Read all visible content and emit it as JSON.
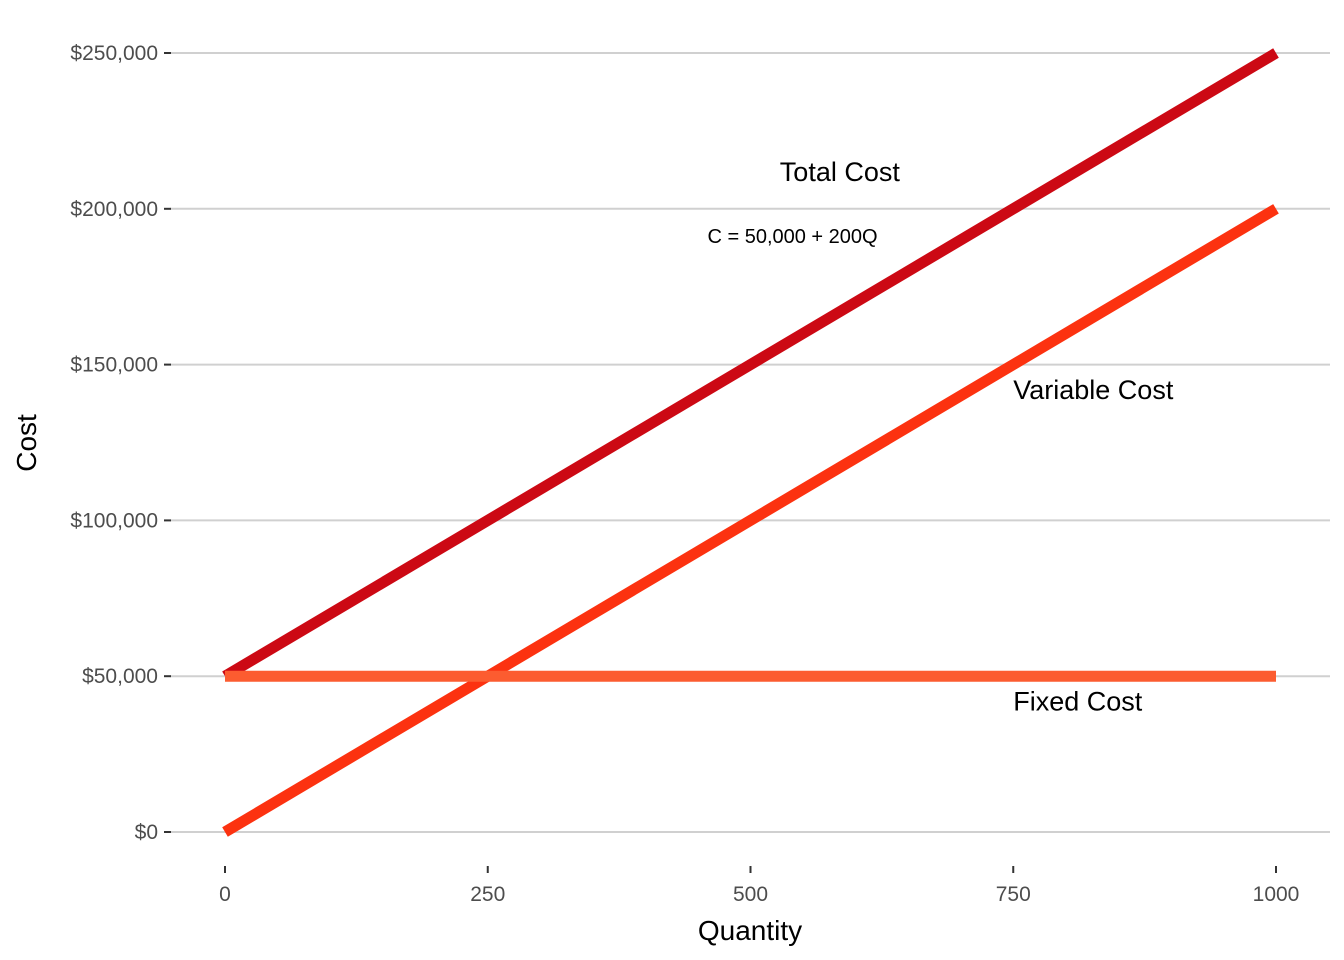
{
  "chart_data": {
    "type": "line",
    "xlabel": "Quantity",
    "ylabel": "Cost",
    "xlim": [
      0,
      1000
    ],
    "ylim": [
      0,
      250000
    ],
    "x_ticks": [
      0,
      250,
      500,
      750,
      1000
    ],
    "x_tick_labels": [
      "0",
      "250",
      "500",
      "750",
      "1000"
    ],
    "y_ticks": [
      0,
      50000,
      100000,
      150000,
      200000,
      250000
    ],
    "y_tick_labels": [
      "$0",
      "$50,000",
      "$100,000",
      "$150,000",
      "$200,000",
      "$250,000"
    ],
    "grid": "horizontal",
    "legend": "none",
    "series": [
      {
        "name": "Total Cost",
        "x": [
          0,
          1000
        ],
        "values": [
          50000,
          250000
        ],
        "color": "#CC0914"
      },
      {
        "name": "Variable Cost",
        "x": [
          0,
          1000
        ],
        "values": [
          0,
          200000
        ],
        "color": "#FC3210"
      },
      {
        "name": "Fixed Cost",
        "x": [
          0,
          1000
        ],
        "values": [
          50000,
          50000
        ],
        "color": "#FC5C30"
      }
    ],
    "labels": [
      {
        "text": "Total Cost",
        "x": 585,
        "y": 209000,
        "anchor": "middle",
        "kind": "series"
      },
      {
        "text": "C = 50,000 + 200Q",
        "x": 540,
        "y": 189000,
        "anchor": "middle",
        "kind": "annotation"
      },
      {
        "text": "Variable Cost",
        "x": 750,
        "y": 139000,
        "anchor": "start",
        "kind": "series"
      },
      {
        "text": "Fixed Cost",
        "x": 750,
        "y": 39000,
        "anchor": "start",
        "kind": "series"
      }
    ]
  }
}
